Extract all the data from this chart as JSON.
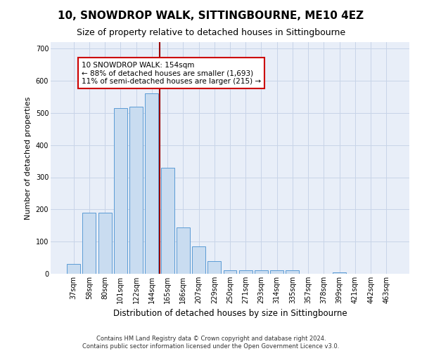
{
  "title": "10, SNOWDROP WALK, SITTINGBOURNE, ME10 4EZ",
  "subtitle": "Size of property relative to detached houses in Sittingbourne",
  "xlabel": "Distribution of detached houses by size in Sittingbourne",
  "ylabel": "Number of detached properties",
  "footnote": "Contains HM Land Registry data © Crown copyright and database right 2024.\nContains public sector information licensed under the Open Government Licence v3.0.",
  "categories": [
    "37sqm",
    "58sqm",
    "80sqm",
    "101sqm",
    "122sqm",
    "144sqm",
    "165sqm",
    "186sqm",
    "207sqm",
    "229sqm",
    "250sqm",
    "271sqm",
    "293sqm",
    "314sqm",
    "335sqm",
    "357sqm",
    "378sqm",
    "399sqm",
    "421sqm",
    "442sqm",
    "463sqm"
  ],
  "values": [
    30,
    190,
    190,
    515,
    520,
    560,
    330,
    145,
    85,
    40,
    12,
    10,
    10,
    10,
    10,
    0,
    0,
    5,
    0,
    0,
    0
  ],
  "bar_color": "#c9dcf0",
  "bar_edge_color": "#5b9bd5",
  "grid_color": "#c8d4e8",
  "background_color": "#e8eef8",
  "vline_color": "#990000",
  "annotation_box_color": "#ffffff",
  "annotation_box_edge": "#cc0000",
  "ylim": [
    0,
    720
  ],
  "yticks": [
    0,
    100,
    200,
    300,
    400,
    500,
    600,
    700
  ],
  "prop_label": "10 SNOWDROP WALK: 154sqm",
  "prop_smaller": "← 88% of detached houses are smaller (1,693)",
  "prop_larger": "11% of semi-detached houses are larger (215) →",
  "title_fontsize": 11,
  "subtitle_fontsize": 9,
  "ylabel_fontsize": 8,
  "xlabel_fontsize": 8.5,
  "tick_fontsize": 7,
  "annot_fontsize": 7.5,
  "footnote_fontsize": 6
}
